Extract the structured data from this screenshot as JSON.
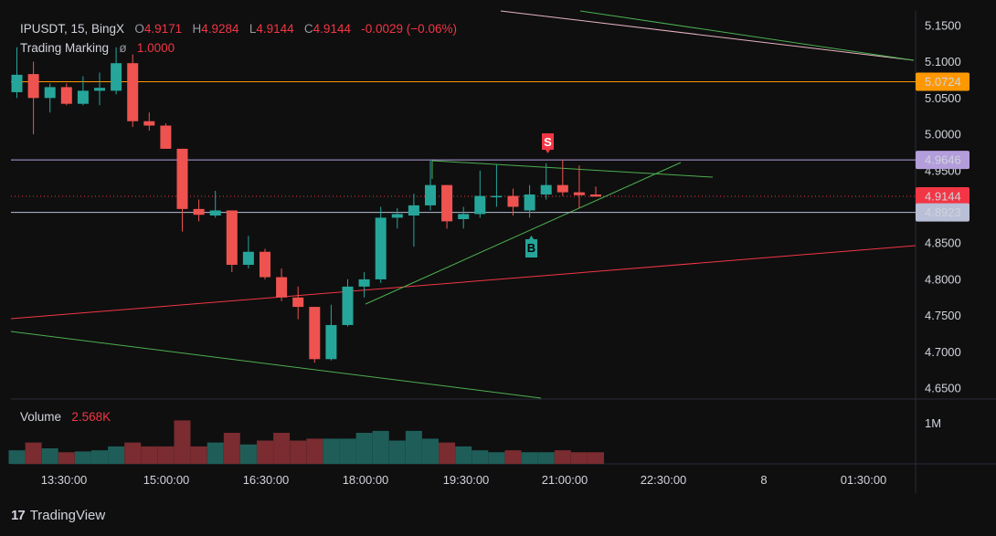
{
  "header": {
    "symbol": "IPUSDT, 15, BingX",
    "o_label": "O",
    "o_value": "4.9171",
    "h_label": "H",
    "h_value": "4.9284",
    "l_label": "L",
    "l_value": "4.9144",
    "c_label": "C",
    "c_value": "4.9144",
    "change": "-0.0029 (−0.06%)",
    "indicator_name": "Trading Marking",
    "indicator_symbol": "ø",
    "indicator_value": "1.0000",
    "volume_label": "Volume",
    "volume_value": "2.568K"
  },
  "price_axis": {
    "ticks": [
      "5.1500",
      "5.1000",
      "5.0500",
      "5.0000",
      "4.9500",
      "4.8500",
      "4.8000",
      "4.7500",
      "4.7000",
      "4.6500"
    ],
    "volume_tick": "1M",
    "labels": [
      {
        "text": "5.0724",
        "value": 5.0724,
        "bg": "#ff9800",
        "fg": "#000000"
      },
      {
        "text": "4.9646",
        "value": 4.9646,
        "bg": "#b39ddb",
        "fg": "#000000"
      },
      {
        "text": "4.9144",
        "value": 4.9144,
        "bg": "#f23645",
        "fg": "#ffffff"
      },
      {
        "text": "4.8923",
        "value": 4.8923,
        "bg": "#b8bfd6",
        "fg": "#000000"
      }
    ]
  },
  "time_axis": [
    "13:30:00",
    "15:00:00",
    "16:30:00",
    "18:00:00",
    "19:30:00",
    "21:00:00",
    "22:30:00",
    "8",
    "01:30:00"
  ],
  "markers": [
    {
      "text": "S",
      "type": "sell",
      "color": "#f23645"
    },
    {
      "text": "B",
      "type": "buy",
      "color": "#26a69a"
    }
  ],
  "colors": {
    "up": "#26a69a",
    "down": "#ef5350",
    "bg": "#0f0f0f",
    "grid": "#1e1e1e"
  },
  "footer": {
    "brand": "TradingView",
    "logo": "17"
  },
  "chart_data": {
    "type": "candlestick",
    "interval": "15",
    "ylim": [
      4.635,
      5.17
    ],
    "candles": [
      {
        "o": 5.058,
        "h": 5.12,
        "l": 5.05,
        "c": 5.082
      },
      {
        "o": 5.083,
        "h": 5.1,
        "l": 5.0,
        "c": 5.05
      },
      {
        "o": 5.05,
        "h": 5.07,
        "l": 5.03,
        "c": 5.065
      },
      {
        "o": 5.065,
        "h": 5.07,
        "l": 5.04,
        "c": 5.042
      },
      {
        "o": 5.042,
        "h": 5.08,
        "l": 5.04,
        "c": 5.06
      },
      {
        "o": 5.06,
        "h": 5.085,
        "l": 5.04,
        "c": 5.064
      },
      {
        "o": 5.06,
        "h": 5.12,
        "l": 5.055,
        "c": 5.098
      },
      {
        "o": 5.098,
        "h": 5.11,
        "l": 5.01,
        "c": 5.018
      },
      {
        "o": 5.018,
        "h": 5.03,
        "l": 5.005,
        "c": 5.012
      },
      {
        "o": 5.012,
        "h": 5.015,
        "l": 4.98,
        "c": 4.98
      },
      {
        "o": 4.98,
        "h": 4.98,
        "l": 4.866,
        "c": 4.897
      },
      {
        "o": 4.897,
        "h": 4.91,
        "l": 4.88,
        "c": 4.889
      },
      {
        "o": 4.888,
        "h": 4.922,
        "l": 4.885,
        "c": 4.895
      },
      {
        "o": 4.895,
        "h": 4.895,
        "l": 4.81,
        "c": 4.82
      },
      {
        "o": 4.82,
        "h": 4.86,
        "l": 4.815,
        "c": 4.838
      },
      {
        "o": 4.838,
        "h": 4.842,
        "l": 4.8,
        "c": 4.803
      },
      {
        "o": 4.803,
        "h": 4.815,
        "l": 4.77,
        "c": 4.775
      },
      {
        "o": 4.775,
        "h": 4.79,
        "l": 4.745,
        "c": 4.762
      },
      {
        "o": 4.762,
        "h": 4.762,
        "l": 4.685,
        "c": 4.69
      },
      {
        "o": 4.69,
        "h": 4.765,
        "l": 4.688,
        "c": 4.737
      },
      {
        "o": 4.737,
        "h": 4.8,
        "l": 4.735,
        "c": 4.79
      },
      {
        "o": 4.79,
        "h": 4.81,
        "l": 4.775,
        "c": 4.8
      },
      {
        "o": 4.8,
        "h": 4.9,
        "l": 4.795,
        "c": 4.885
      },
      {
        "o": 4.885,
        "h": 4.898,
        "l": 4.87,
        "c": 4.89
      },
      {
        "o": 4.888,
        "h": 4.918,
        "l": 4.845,
        "c": 4.902
      },
      {
        "o": 4.902,
        "h": 4.965,
        "l": 4.895,
        "c": 4.93
      },
      {
        "o": 4.93,
        "h": 4.93,
        "l": 4.87,
        "c": 4.88
      },
      {
        "o": 4.883,
        "h": 4.9,
        "l": 4.87,
        "c": 4.89
      },
      {
        "o": 4.89,
        "h": 4.95,
        "l": 4.885,
        "c": 4.915
      },
      {
        "o": 4.915,
        "h": 4.958,
        "l": 4.9,
        "c": 4.915
      },
      {
        "o": 4.915,
        "h": 4.925,
        "l": 4.888,
        "c": 4.9
      },
      {
        "o": 4.895,
        "h": 4.93,
        "l": 4.885,
        "c": 4.917
      },
      {
        "o": 4.917,
        "h": 4.96,
        "l": 4.91,
        "c": 4.93
      },
      {
        "o": 4.93,
        "h": 4.965,
        "l": 4.915,
        "c": 4.92
      },
      {
        "o": 4.92,
        "h": 4.957,
        "l": 4.898,
        "c": 4.916
      },
      {
        "o": 4.917,
        "h": 4.928,
        "l": 4.914,
        "c": 4.914
      }
    ],
    "volumes": [
      0.35,
      0.55,
      0.4,
      0.3,
      0.32,
      0.35,
      0.45,
      0.55,
      0.45,
      0.45,
      1.12,
      0.45,
      0.55,
      0.8,
      0.5,
      0.6,
      0.8,
      0.6,
      0.65,
      0.65,
      0.65,
      0.8,
      0.85,
      0.6,
      0.85,
      0.65,
      0.55,
      0.45,
      0.35,
      0.3,
      0.35,
      0.3,
      0.3,
      0.35,
      0.3,
      0.3
    ],
    "volume_max": 1.6,
    "horizontal_lines": [
      {
        "value": 5.0724,
        "color": "#ff9800"
      },
      {
        "value": 4.9646,
        "color": "#b39ddb"
      },
      {
        "value": 4.8923,
        "color": "#b8bfd6"
      },
      {
        "value": 4.9144,
        "color": "#f23645",
        "dashed": true
      }
    ]
  }
}
